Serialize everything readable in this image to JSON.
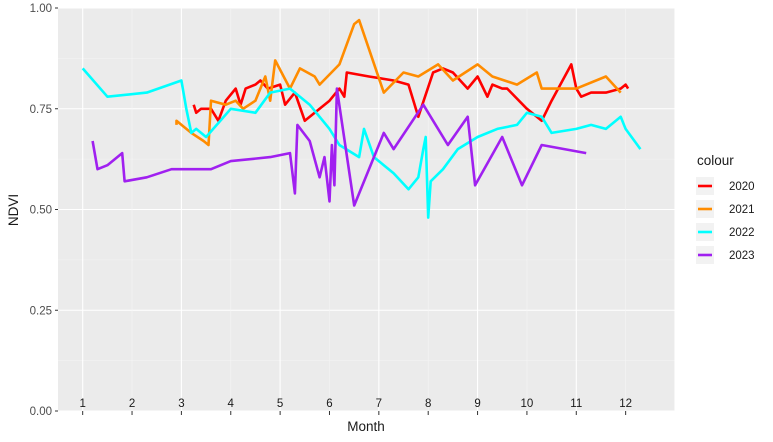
{
  "chart_data": {
    "type": "line",
    "xlabel": "Month",
    "ylabel": "NDVI",
    "xlim": [
      0.5,
      13
    ],
    "ylim": [
      0,
      1
    ],
    "yticks": [
      {
        "value": 0.0,
        "label": "0.00"
      },
      {
        "value": 0.25,
        "label": "0.25"
      },
      {
        "value": 0.5,
        "label": "0.50"
      },
      {
        "value": 0.75,
        "label": "0.75"
      },
      {
        "value": 1.0,
        "label": "1.00"
      }
    ],
    "month_labels": [
      {
        "x": 1,
        "label": "1"
      },
      {
        "x": 2,
        "label": "2"
      },
      {
        "x": 3,
        "label": "3"
      },
      {
        "x": 4,
        "label": "4"
      },
      {
        "x": 5,
        "label": "5"
      },
      {
        "x": 6,
        "label": "6"
      },
      {
        "x": 7,
        "label": "7"
      },
      {
        "x": 8,
        "label": "8"
      },
      {
        "x": 9,
        "label": "9"
      },
      {
        "x": 10,
        "label": "10"
      },
      {
        "x": 11,
        "label": "11"
      },
      {
        "x": 12,
        "label": "12"
      }
    ],
    "grid": true,
    "legend_position": "right",
    "legend_title": "colour",
    "series": [
      {
        "name": "2020",
        "color": "#ff0000",
        "points": [
          [
            3.25,
            0.76
          ],
          [
            3.3,
            0.74
          ],
          [
            3.4,
            0.75
          ],
          [
            3.5,
            0.75
          ],
          [
            3.6,
            0.75
          ],
          [
            3.75,
            0.72
          ],
          [
            3.9,
            0.77
          ],
          [
            4.1,
            0.8
          ],
          [
            4.2,
            0.76
          ],
          [
            4.3,
            0.8
          ],
          [
            4.5,
            0.81
          ],
          [
            4.6,
            0.82
          ],
          [
            4.75,
            0.8
          ],
          [
            5.0,
            0.81
          ],
          [
            5.1,
            0.76
          ],
          [
            5.3,
            0.79
          ],
          [
            5.5,
            0.72
          ],
          [
            5.8,
            0.75
          ],
          [
            6.0,
            0.77
          ],
          [
            6.2,
            0.8
          ],
          [
            6.3,
            0.78
          ],
          [
            6.35,
            0.84
          ],
          [
            6.8,
            0.83
          ],
          [
            7.3,
            0.82
          ],
          [
            7.6,
            0.81
          ],
          [
            7.8,
            0.73
          ],
          [
            8.1,
            0.84
          ],
          [
            8.3,
            0.85
          ],
          [
            8.5,
            0.84
          ],
          [
            8.8,
            0.8
          ],
          [
            9.0,
            0.83
          ],
          [
            9.2,
            0.78
          ],
          [
            9.3,
            0.81
          ],
          [
            9.5,
            0.8
          ],
          [
            9.6,
            0.8
          ],
          [
            10.0,
            0.75
          ],
          [
            10.3,
            0.72
          ],
          [
            10.5,
            0.77
          ],
          [
            10.9,
            0.86
          ],
          [
            11.0,
            0.8
          ],
          [
            11.1,
            0.78
          ],
          [
            11.3,
            0.79
          ],
          [
            11.6,
            0.79
          ],
          [
            11.9,
            0.8
          ],
          [
            12.0,
            0.81
          ],
          [
            12.05,
            0.8
          ]
        ]
      },
      {
        "name": "2021",
        "color": "#ff8c00",
        "points": [
          [
            2.9,
            0.71
          ],
          [
            2.9,
            0.72
          ],
          [
            3.2,
            0.69
          ],
          [
            3.45,
            0.67
          ],
          [
            3.55,
            0.66
          ],
          [
            3.6,
            0.77
          ],
          [
            3.9,
            0.76
          ],
          [
            4.1,
            0.77
          ],
          [
            4.25,
            0.75
          ],
          [
            4.5,
            0.77
          ],
          [
            4.7,
            0.83
          ],
          [
            4.8,
            0.77
          ],
          [
            4.9,
            0.87
          ],
          [
            5.2,
            0.8
          ],
          [
            5.4,
            0.85
          ],
          [
            5.7,
            0.83
          ],
          [
            5.8,
            0.81
          ],
          [
            6.2,
            0.86
          ],
          [
            6.5,
            0.96
          ],
          [
            6.6,
            0.97
          ],
          [
            7.1,
            0.79
          ],
          [
            7.5,
            0.84
          ],
          [
            7.8,
            0.83
          ],
          [
            8.2,
            0.86
          ],
          [
            8.5,
            0.82
          ],
          [
            9.0,
            0.86
          ],
          [
            9.3,
            0.83
          ],
          [
            9.8,
            0.81
          ],
          [
            10.2,
            0.84
          ],
          [
            10.3,
            0.8
          ],
          [
            11.0,
            0.8
          ],
          [
            11.6,
            0.83
          ],
          [
            11.9,
            0.79
          ]
        ]
      },
      {
        "name": "2022",
        "color": "#00ffff",
        "points": [
          [
            1.0,
            0.85
          ],
          [
            1.5,
            0.78
          ],
          [
            2.3,
            0.79
          ],
          [
            3.0,
            0.82
          ],
          [
            3.1,
            0.75
          ],
          [
            3.2,
            0.69
          ],
          [
            3.3,
            0.7
          ],
          [
            3.5,
            0.68
          ],
          [
            4.0,
            0.75
          ],
          [
            4.5,
            0.74
          ],
          [
            4.8,
            0.79
          ],
          [
            5.2,
            0.8
          ],
          [
            5.6,
            0.76
          ],
          [
            6.0,
            0.7
          ],
          [
            6.2,
            0.66
          ],
          [
            6.6,
            0.63
          ],
          [
            6.7,
            0.7
          ],
          [
            6.9,
            0.63
          ],
          [
            7.3,
            0.59
          ],
          [
            7.6,
            0.55
          ],
          [
            7.8,
            0.58
          ],
          [
            7.9,
            0.65
          ],
          [
            7.95,
            0.68
          ],
          [
            8.0,
            0.48
          ],
          [
            8.05,
            0.57
          ],
          [
            8.3,
            0.6
          ],
          [
            8.6,
            0.65
          ],
          [
            9.0,
            0.68
          ],
          [
            9.4,
            0.7
          ],
          [
            9.8,
            0.71
          ],
          [
            10.0,
            0.74
          ],
          [
            10.3,
            0.73
          ],
          [
            10.5,
            0.69
          ],
          [
            11.0,
            0.7
          ],
          [
            11.3,
            0.71
          ],
          [
            11.6,
            0.7
          ],
          [
            11.9,
            0.73
          ],
          [
            12.0,
            0.7
          ],
          [
            12.3,
            0.65
          ]
        ]
      },
      {
        "name": "2023",
        "color": "#a020f0",
        "points": [
          [
            1.2,
            0.67
          ],
          [
            1.3,
            0.6
          ],
          [
            1.5,
            0.61
          ],
          [
            1.8,
            0.64
          ],
          [
            1.85,
            0.57
          ],
          [
            2.3,
            0.58
          ],
          [
            2.8,
            0.6
          ],
          [
            3.4,
            0.6
          ],
          [
            3.6,
            0.6
          ],
          [
            4.0,
            0.62
          ],
          [
            4.8,
            0.63
          ],
          [
            5.2,
            0.64
          ],
          [
            5.3,
            0.54
          ],
          [
            5.35,
            0.71
          ],
          [
            5.6,
            0.67
          ],
          [
            5.8,
            0.58
          ],
          [
            5.9,
            0.63
          ],
          [
            6.0,
            0.52
          ],
          [
            6.05,
            0.66
          ],
          [
            6.1,
            0.56
          ],
          [
            6.15,
            0.8
          ],
          [
            6.5,
            0.51
          ],
          [
            7.1,
            0.69
          ],
          [
            7.3,
            0.65
          ],
          [
            7.9,
            0.76
          ],
          [
            8.4,
            0.66
          ],
          [
            8.8,
            0.73
          ],
          [
            8.95,
            0.56
          ],
          [
            9.5,
            0.68
          ],
          [
            9.9,
            0.56
          ],
          [
            10.3,
            0.66
          ],
          [
            11.2,
            0.64
          ]
        ]
      }
    ]
  }
}
